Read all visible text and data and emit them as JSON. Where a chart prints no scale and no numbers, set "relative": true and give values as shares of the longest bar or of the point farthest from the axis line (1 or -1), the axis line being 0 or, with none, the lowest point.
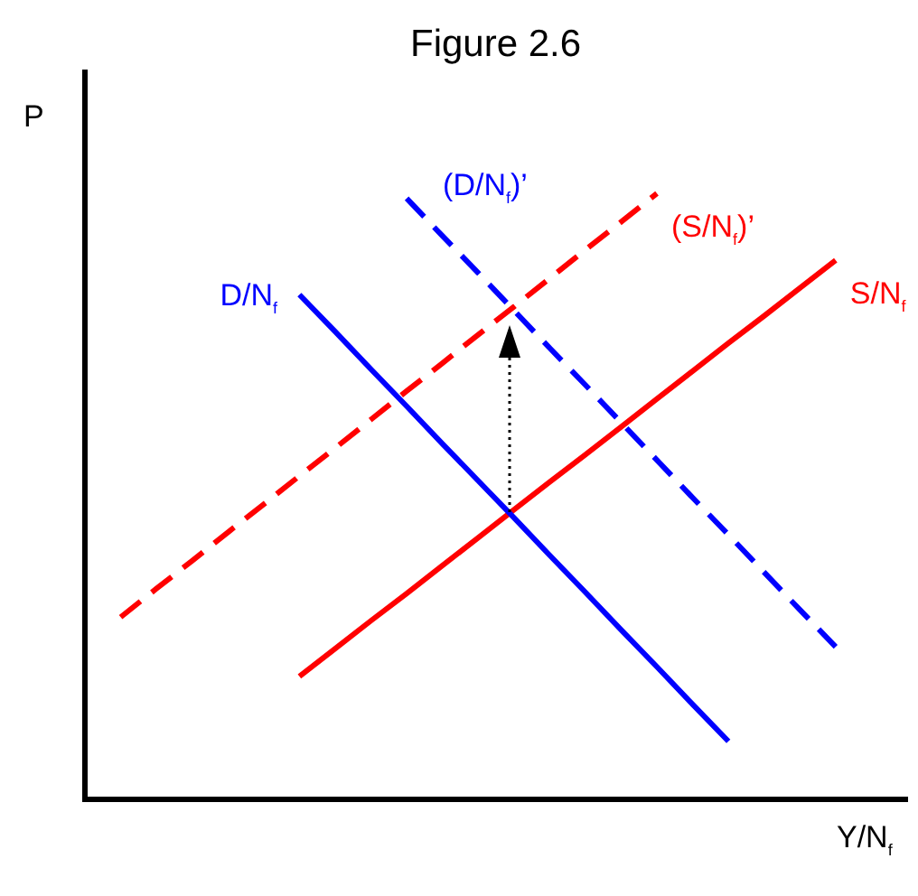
{
  "chart_data": {
    "type": "line",
    "title": "Figure 2.6",
    "xlabel": "Y/N$_{f}$",
    "ylabel": "P",
    "relative": true,
    "grid": false,
    "legend": false,
    "marker": "none",
    "categories": [
      null,
      null,
      null,
      null,
      null,
      null,
      null,
      null,
      null,
      null,
      null,
      null,
      null,
      null,
      null,
      null,
      null,
      null,
      null,
      null,
      null,
      null,
      null,
      null
    ],
    "series": [
      {
        "name": "D/N$_{f}$",
        "color": "#0000ff",
        "line_style": "solid",
        "values": [
          null,
          null,
          null,
          null,
          null,
          null,
          0.833,
          0.772,
          0.71,
          0.649,
          0.587,
          0.526,
          0.465,
          0.403,
          0.342,
          0.28,
          0.219,
          0.157,
          0.096,
          null,
          null,
          null,
          null,
          null
        ]
      },
      {
        "name": "S/N$_{f}$",
        "color": "#ff0000",
        "line_style": "solid",
        "values": [
          null,
          null,
          null,
          null,
          null,
          null,
          0.203,
          0.249,
          0.295,
          0.34,
          0.386,
          0.432,
          0.478,
          0.524,
          0.569,
          0.615,
          0.661,
          0.707,
          0.753,
          0.798,
          0.844,
          0.89,
          null,
          null
        ]
      },
      {
        "name": "(D/N$_{f}$)’",
        "color": "#0000ff",
        "line_style": "dashed",
        "values": [
          null,
          null,
          null,
          null,
          null,
          null,
          null,
          null,
          null,
          0.992,
          0.93,
          0.869,
          0.807,
          0.745,
          0.684,
          0.622,
          0.56,
          0.498,
          0.437,
          0.375,
          0.313,
          0.252,
          null,
          null
        ]
      },
      {
        "name": "(S/N$_{f}$)’",
        "color": "#ff0000",
        "line_style": "dashed",
        "values": [
          null,
          0.301,
          0.348,
          0.394,
          0.441,
          0.487,
          0.534,
          0.58,
          0.627,
          0.674,
          0.72,
          0.767,
          0.813,
          0.86,
          0.907,
          0.953,
          1,
          null,
          null,
          null,
          null,
          null,
          null,
          null
        ]
      }
    ]
  }
}
